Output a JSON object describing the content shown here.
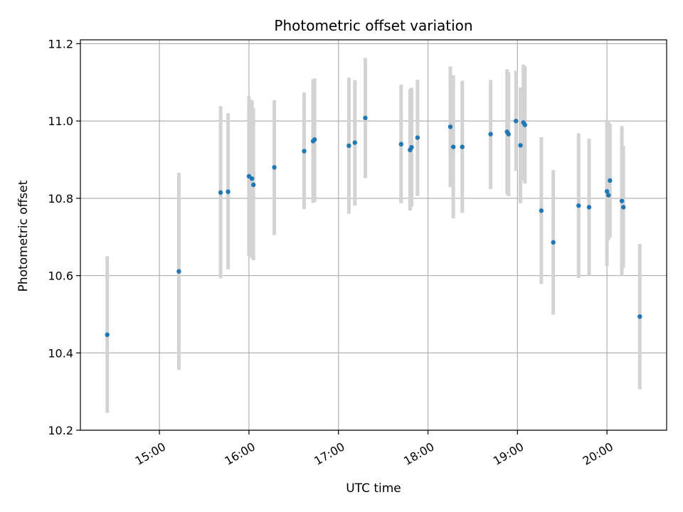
{
  "chart_data": {
    "type": "scatter",
    "title": "Photometric offset variation",
    "xlabel": "UTC time",
    "ylabel": "Photometric offset",
    "ylim": [
      10.2,
      11.21
    ],
    "xlim": [
      "14:07",
      "20:40"
    ],
    "grid": true,
    "x_ticks": [
      "15:00",
      "16:00",
      "17:00",
      "18:00",
      "19:00",
      "20:00"
    ],
    "y_ticks": [
      "10.2",
      "10.4",
      "10.6",
      "10.8",
      "11.0",
      "11.2"
    ],
    "point_color": "#1f77b4",
    "errorbar_color": "#d3d3d3",
    "points": [
      {
        "t": "14:25",
        "y": 10.447,
        "lo": 10.245,
        "hi": 10.65
      },
      {
        "t": "15:13",
        "y": 10.611,
        "lo": 10.356,
        "hi": 10.866
      },
      {
        "t": "15:41",
        "y": 10.815,
        "lo": 10.593,
        "hi": 11.038
      },
      {
        "t": "15:46",
        "y": 10.817,
        "lo": 10.616,
        "hi": 11.02
      },
      {
        "t": "16:00",
        "y": 10.857,
        "lo": 10.651,
        "hi": 11.065
      },
      {
        "t": "16:02",
        "y": 10.851,
        "lo": 10.645,
        "hi": 11.054
      },
      {
        "t": "16:03",
        "y": 10.835,
        "lo": 10.64,
        "hi": 11.033
      },
      {
        "t": "16:17",
        "y": 10.88,
        "lo": 10.705,
        "hi": 11.054
      },
      {
        "t": "16:37",
        "y": 10.922,
        "lo": 10.772,
        "hi": 11.074
      },
      {
        "t": "16:43",
        "y": 10.948,
        "lo": 10.788,
        "hi": 11.108
      },
      {
        "t": "16:44",
        "y": 10.952,
        "lo": 10.79,
        "hi": 11.11
      },
      {
        "t": "17:07",
        "y": 10.936,
        "lo": 10.76,
        "hi": 11.112
      },
      {
        "t": "17:11",
        "y": 10.944,
        "lo": 10.781,
        "hi": 11.106
      },
      {
        "t": "17:18",
        "y": 11.008,
        "lo": 10.852,
        "hi": 11.163
      },
      {
        "t": "17:42",
        "y": 10.94,
        "lo": 10.787,
        "hi": 11.094
      },
      {
        "t": "17:48",
        "y": 10.925,
        "lo": 10.768,
        "hi": 11.083
      },
      {
        "t": "17:49",
        "y": 10.932,
        "lo": 10.778,
        "hi": 11.086
      },
      {
        "t": "17:53",
        "y": 10.957,
        "lo": 10.806,
        "hi": 11.107
      },
      {
        "t": "18:15",
        "y": 10.985,
        "lo": 10.829,
        "hi": 11.141
      },
      {
        "t": "18:17",
        "y": 10.933,
        "lo": 10.748,
        "hi": 11.118
      },
      {
        "t": "18:23",
        "y": 10.933,
        "lo": 10.762,
        "hi": 11.104
      },
      {
        "t": "18:42",
        "y": 10.966,
        "lo": 10.824,
        "hi": 11.106
      },
      {
        "t": "18:53",
        "y": 10.972,
        "lo": 10.81,
        "hi": 11.134
      },
      {
        "t": "18:54",
        "y": 10.966,
        "lo": 10.806,
        "hi": 11.126
      },
      {
        "t": "18:59",
        "y": 11.0,
        "lo": 10.871,
        "hi": 11.13
      },
      {
        "t": "19:02",
        "y": 10.937,
        "lo": 10.787,
        "hi": 11.087
      },
      {
        "t": "19:04",
        "y": 10.996,
        "lo": 10.847,
        "hi": 11.146
      },
      {
        "t": "19:05",
        "y": 10.99,
        "lo": 10.838,
        "hi": 11.142
      },
      {
        "t": "19:16",
        "y": 10.768,
        "lo": 10.578,
        "hi": 10.958
      },
      {
        "t": "19:24",
        "y": 10.686,
        "lo": 10.499,
        "hi": 10.873
      },
      {
        "t": "19:41",
        "y": 10.781,
        "lo": 10.594,
        "hi": 10.968
      },
      {
        "t": "19:48",
        "y": 10.777,
        "lo": 10.6,
        "hi": 10.954
      },
      {
        "t": "20:00",
        "y": 10.818,
        "lo": 10.624,
        "hi": 11.003
      },
      {
        "t": "20:01",
        "y": 10.808,
        "lo": 10.692,
        "hi": 11.001
      },
      {
        "t": "20:02",
        "y": 10.846,
        "lo": 10.698,
        "hi": 10.993
      },
      {
        "t": "20:10",
        "y": 10.793,
        "lo": 10.6,
        "hi": 10.987
      },
      {
        "t": "20:11",
        "y": 10.777,
        "lo": 10.62,
        "hi": 10.935
      },
      {
        "t": "20:22",
        "y": 10.494,
        "lo": 10.306,
        "hi": 10.682
      }
    ]
  }
}
